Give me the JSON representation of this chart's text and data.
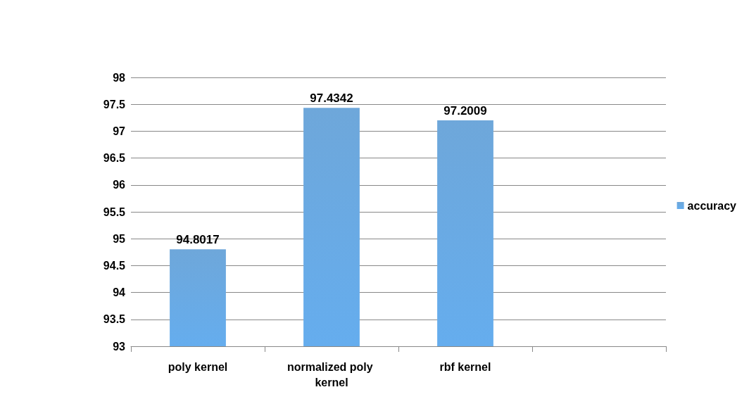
{
  "chart_data": {
    "type": "bar",
    "categories": [
      "poly kernel",
      "normalized poly kernel",
      "rbf kernel",
      null
    ],
    "series": [
      {
        "name": "accuracy",
        "color": "#5b9bd5",
        "values": [
          94.8017,
          97.4342,
          97.2009,
          null
        ]
      }
    ],
    "ylim": [
      93,
      98
    ],
    "yticks": [
      93,
      93.5,
      94,
      94.5,
      95,
      95.5,
      96,
      96.5,
      97,
      97.5,
      98
    ],
    "grid": "y",
    "legend": "right",
    "data_labels": true
  }
}
